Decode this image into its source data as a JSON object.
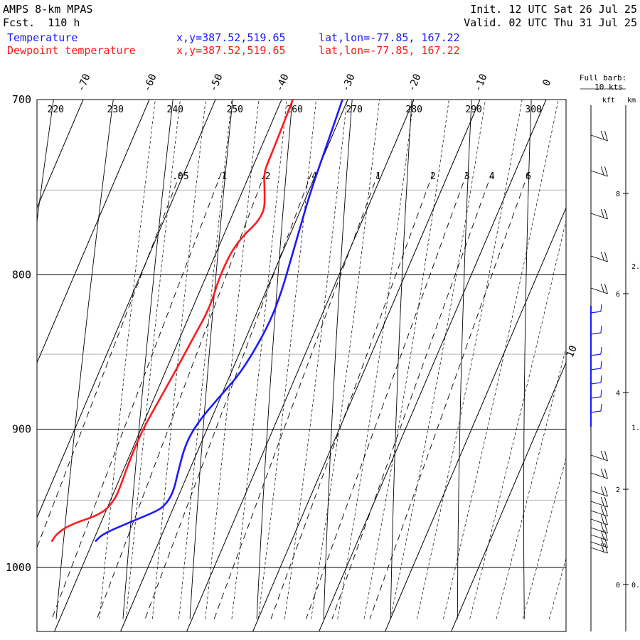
{
  "header": {
    "model": "AMPS 8-km MPAS",
    "forecast": "Fcst.  110 h",
    "init": "Init. 12 UTC Sat 26 Jul 25",
    "valid": "Valid. 02 UTC Thu 31 Jul 25",
    "temp_label": "Temperature",
    "dew_label": "Dewpoint temperature",
    "temp_xy": "x,y=387.52,519.65",
    "temp_latlon": "lat,lon=-77.85, 167.22",
    "dew_xy": "x,y=387.52,519.65",
    "dew_latlon": "lat,lon=-77.85, 167.22"
  },
  "barb_header": {
    "full_barb": "Full barb:",
    "kts": "10 kts",
    "kft": "kft",
    "km": "km"
  },
  "colors": {
    "temperature": "#1a1aff",
    "dewpoint": "#ff1a1a"
  },
  "chart_data": {
    "type": "line",
    "y_axis": {
      "scale": "log",
      "range": [
        1040,
        700
      ],
      "ticks": [
        700,
        800,
        900,
        1000
      ]
    },
    "isotherm_labels": [
      "-70",
      "-60",
      "-50",
      "-40",
      "-30",
      "-20",
      "-10",
      "0",
      "10"
    ],
    "dry_adiabat_labels": [
      "220",
      "230",
      "240",
      "250",
      "260",
      "270",
      "280",
      "290",
      "300"
    ],
    "mixing_ratio_labels": [
      ".05",
      ".1",
      ".2",
      ".4",
      "1",
      "2",
      "3",
      "4",
      "6"
    ],
    "height_ticks_kft": [
      "0",
      "2",
      "4",
      "6",
      "8"
    ],
    "height_ticks_km": [
      "0.",
      "1.",
      "2."
    ],
    "series": [
      {
        "name": "Temperature",
        "pressure": [
          980,
          975,
          968,
          960,
          955,
          945,
          930,
          910,
          895,
          880,
          865,
          850,
          830,
          810,
          790,
          770,
          750,
          730,
          700
        ],
        "temperature": [
          -39.6,
          -39.0,
          -36.4,
          -33.1,
          -31.5,
          -31.0,
          -31.6,
          -32.3,
          -31.8,
          -30.4,
          -28.8,
          -28.0,
          -27.4,
          -27.6,
          -28.3,
          -29.0,
          -29.7,
          -30.1,
          -30.8
        ]
      },
      {
        "name": "Dewpoint temperature",
        "pressure": [
          980,
          975,
          968,
          960,
          950,
          940,
          920,
          900,
          880,
          860,
          840,
          820,
          800,
          780,
          765,
          750,
          740,
          730,
          700
        ],
        "temperature": [
          -46.2,
          -46.0,
          -44.6,
          -40.4,
          -39.4,
          -39.4,
          -39.7,
          -39.7,
          -39.1,
          -38.5,
          -38.0,
          -37.4,
          -38.0,
          -37.6,
          -35.1,
          -36.7,
          -38.0,
          -38.0,
          -38.3
        ]
      }
    ]
  }
}
